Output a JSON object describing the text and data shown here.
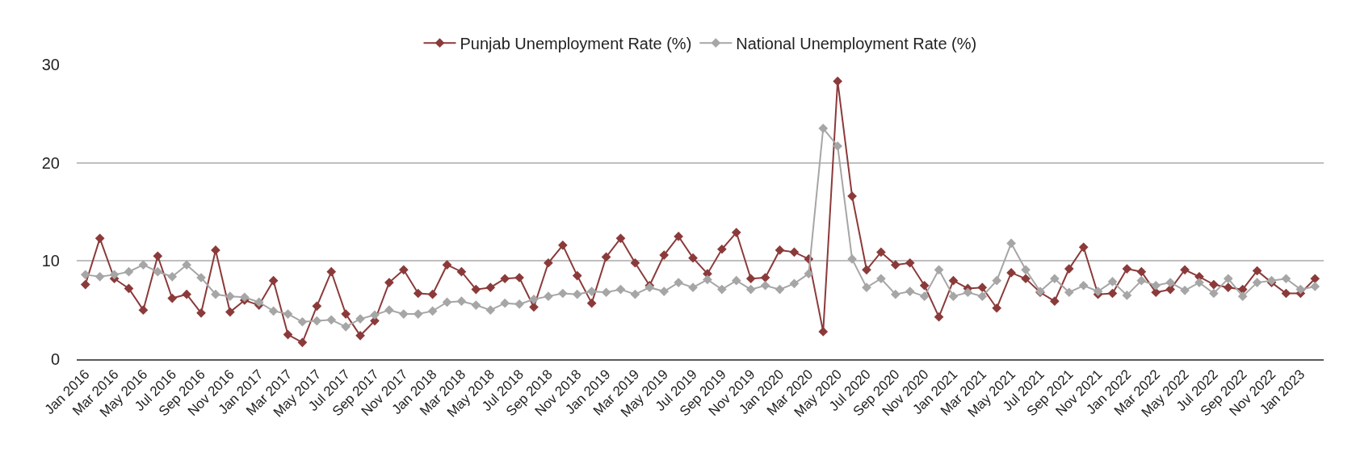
{
  "chart_data": {
    "type": "line",
    "categories": [
      "Jan 2016",
      null,
      "Mar 2016",
      null,
      "May 2016",
      null,
      "Jul 2016",
      null,
      "Sep 2016",
      null,
      "Nov 2016",
      null,
      "Jan 2017",
      null,
      "Mar 2017",
      null,
      "May 2017",
      null,
      "Jul 2017",
      null,
      "Sep 2017",
      null,
      "Nov 2017",
      null,
      "Jan 2018",
      null,
      "Mar 2018",
      null,
      "May 2018",
      null,
      "Jul 2018",
      null,
      "Sep 2018",
      null,
      "Nov 2018",
      null,
      "Jan 2019",
      null,
      "Mar 2019",
      null,
      "May 2019",
      null,
      "Jul 2019",
      null,
      "Sep 2019",
      null,
      "Nov 2019",
      null,
      "Jan 2020",
      null,
      "Mar 2020",
      null,
      "May 2020",
      null,
      "Jul 2020",
      null,
      "Sep 2020",
      null,
      "Nov 2020",
      null,
      "Jan 2021",
      null,
      "Mar 2021",
      null,
      "May 2021",
      null,
      "Jul 2021",
      null,
      "Sep 2021",
      null,
      "Nov 2021",
      null,
      "Jan 2022",
      null,
      "Mar 2022",
      null,
      "May 2022",
      null,
      "Jul 2022",
      null,
      "Sep 2022",
      null,
      "Nov 2022",
      null,
      "Jan 2023",
      null
    ],
    "series": [
      {
        "name": "Punjab Unemployment Rate (%)",
        "color": "#8b3a3a",
        "values": [
          7.6,
          12.3,
          8.2,
          7.2,
          5.0,
          10.5,
          6.2,
          6.6,
          4.7,
          11.1,
          4.8,
          6.0,
          5.5,
          8.0,
          2.5,
          1.7,
          5.4,
          8.9,
          4.6,
          2.4,
          3.9,
          7.8,
          9.1,
          6.7,
          6.6,
          9.6,
          8.9,
          7.1,
          7.3,
          8.2,
          8.3,
          5.3,
          9.8,
          11.6,
          8.5,
          5.7,
          10.4,
          12.3,
          9.8,
          7.5,
          10.6,
          12.5,
          10.3,
          8.7,
          11.2,
          12.9,
          8.2,
          8.3,
          11.1,
          10.9,
          10.2,
          2.8,
          28.3,
          16.6,
          9.1,
          10.9,
          9.6,
          9.8,
          7.5,
          4.3,
          8.0,
          7.2,
          7.3,
          5.2,
          8.8,
          8.2,
          6.8,
          5.9,
          9.2,
          11.4,
          6.6,
          6.7,
          9.2,
          8.9,
          6.8,
          7.1,
          9.1,
          8.4,
          7.6,
          7.3,
          7.1,
          9.0,
          7.8,
          6.7,
          6.7,
          8.2
        ]
      },
      {
        "name": "National Unemployment Rate (%)",
        "color": "#a6a6a6",
        "values": [
          8.6,
          8.4,
          8.6,
          8.9,
          9.6,
          8.9,
          8.4,
          9.6,
          8.3,
          6.6,
          6.4,
          6.3,
          5.8,
          4.9,
          4.6,
          3.8,
          3.9,
          4.0,
          3.3,
          4.1,
          4.5,
          5.0,
          4.6,
          4.6,
          4.9,
          5.8,
          5.9,
          5.5,
          5.0,
          5.7,
          5.6,
          6.1,
          6.4,
          6.7,
          6.6,
          6.9,
          6.8,
          7.1,
          6.6,
          7.3,
          6.9,
          7.8,
          7.3,
          8.1,
          7.1,
          8.0,
          7.1,
          7.5,
          7.1,
          7.7,
          8.7,
          23.5,
          21.7,
          10.2,
          7.3,
          8.2,
          6.6,
          6.9,
          6.4,
          9.1,
          6.4,
          6.8,
          6.4,
          8.0,
          11.8,
          9.1,
          6.9,
          8.2,
          6.8,
          7.5,
          6.9,
          7.9,
          6.5,
          8.0,
          7.5,
          7.8,
          7.0,
          7.8,
          6.7,
          8.2,
          6.4,
          7.8,
          8.0,
          8.2,
          7.1,
          7.4
        ]
      }
    ],
    "ylim": [
      0,
      30
    ],
    "yticks": [
      0,
      10,
      20,
      30
    ],
    "grid": "y",
    "legend": "top",
    "marker": "diamond",
    "line_style": "solid"
  }
}
